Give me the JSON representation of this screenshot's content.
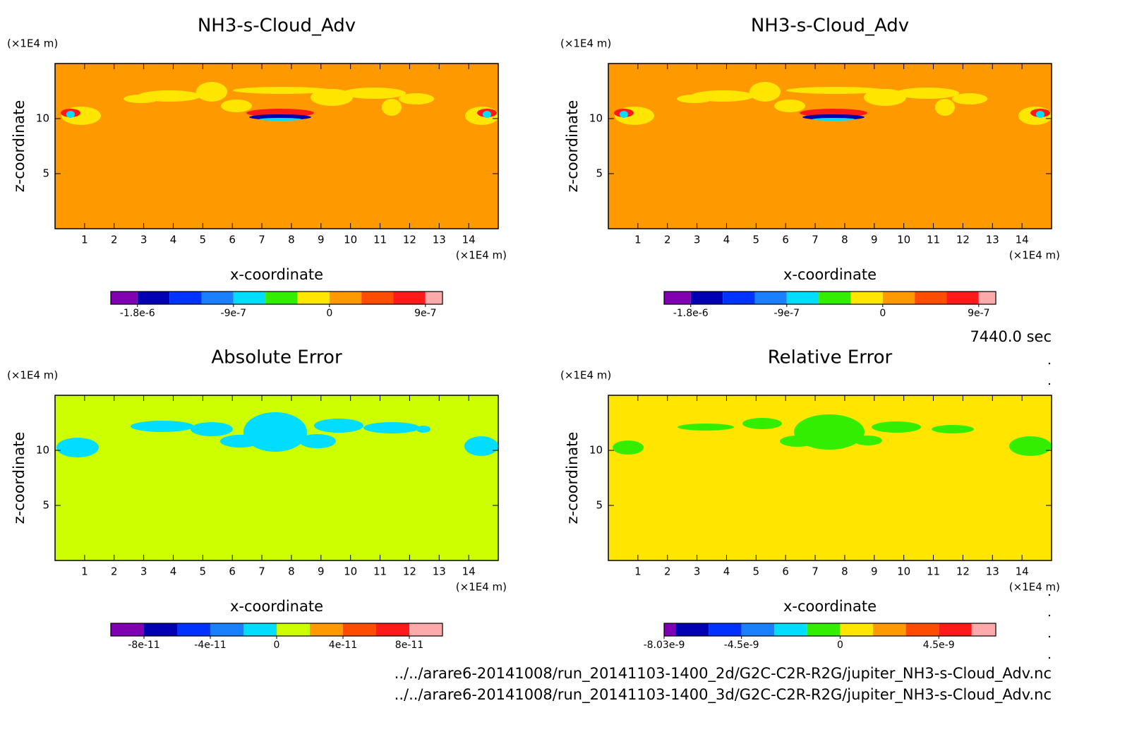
{
  "chart_data": [
    {
      "type": "contour",
      "title": "NH3-s-Cloud_Adv",
      "xlabel": "x-coordinate",
      "ylabel": "z-coordinate",
      "xunit": "(×1E4 m)",
      "yunit": "(×1E4 m)",
      "xlim": [
        0,
        15
      ],
      "ylim": [
        0,
        15
      ],
      "xticks": [
        1,
        2,
        3,
        4,
        5,
        6,
        7,
        8,
        9,
        10,
        11,
        12,
        13,
        14
      ],
      "yticks": [
        5,
        10
      ],
      "field_color": "#ff9900",
      "colorbar": {
        "lim": [
          -2.05e-06,
          1.06e-06
        ],
        "levels": [
          -1.8e-06,
          -1.5e-06,
          -1.2e-06,
          -9e-07,
          -6e-07,
          -3e-07,
          0,
          3e-07,
          6e-07,
          9e-07
        ],
        "colors": [
          "#7f00b2",
          "#0000b2",
          "#0033ff",
          "#1a80ff",
          "#00ddff",
          "#33ee00",
          "#ffe600",
          "#ff9900",
          "#ff4d00",
          "#ff1a1a",
          "#ffaaaa"
        ],
        "ticks": [
          {
            "value": -1.8e-06,
            "label": "-1.8e-6"
          },
          {
            "value": -9e-07,
            "label": "-9e-7"
          },
          0,
          {
            "value": 9e-07,
            "label": "9e-7"
          }
        ]
      }
    },
    {
      "type": "contour",
      "title": "NH3-s-Cloud_Adv",
      "xlabel": "x-coordinate",
      "ylabel": "z-coordinate",
      "xunit": "(×1E4 m)",
      "yunit": "(×1E4 m)",
      "xlim": [
        0,
        15
      ],
      "ylim": [
        0,
        15
      ],
      "xticks": [
        1,
        2,
        3,
        4,
        5,
        6,
        7,
        8,
        9,
        10,
        11,
        12,
        13,
        14
      ],
      "yticks": [
        5,
        10
      ],
      "field_color": "#ff9900",
      "colorbar": {
        "lim": [
          -2.05e-06,
          1.06e-06
        ],
        "levels": [
          -1.8e-06,
          -1.5e-06,
          -1.2e-06,
          -9e-07,
          -6e-07,
          -3e-07,
          0,
          3e-07,
          6e-07,
          9e-07
        ],
        "colors": [
          "#7f00b2",
          "#0000b2",
          "#0033ff",
          "#1a80ff",
          "#00ddff",
          "#33ee00",
          "#ffe600",
          "#ff9900",
          "#ff4d00",
          "#ff1a1a",
          "#ffaaaa"
        ],
        "ticks": [
          {
            "value": -1.8e-06,
            "label": "-1.8e-6"
          },
          {
            "value": -9e-07,
            "label": "-9e-7"
          },
          0,
          {
            "value": 9e-07,
            "label": "9e-7"
          }
        ]
      }
    },
    {
      "type": "contour",
      "title": "Absolute Error",
      "xlabel": "x-coordinate",
      "ylabel": "z-coordinate",
      "xunit": "(×1E4 m)",
      "yunit": "(×1E4 m)",
      "xlim": [
        0,
        15
      ],
      "ylim": [
        0,
        15
      ],
      "xticks": [
        1,
        2,
        3,
        4,
        5,
        6,
        7,
        8,
        9,
        10,
        11,
        12,
        13,
        14
      ],
      "yticks": [
        5,
        10
      ],
      "field_color": "#ccff00",
      "colorbar": {
        "lim": [
          -1e-10,
          1e-10
        ],
        "levels": [
          -8e-11,
          -6e-11,
          -4e-11,
          -2e-11,
          0,
          2e-11,
          4e-11,
          6e-11,
          8e-11
        ],
        "colors": [
          "#7f00b2",
          "#0000b2",
          "#0033ff",
          "#1a80ff",
          "#00ddff",
          "#ccff00",
          "#ff9900",
          "#ff4d00",
          "#ff1a1a",
          "#ffaaaa"
        ],
        "ticks": [
          {
            "value": -8e-11,
            "label": "-8e-11"
          },
          {
            "value": -4e-11,
            "label": "-4e-11"
          },
          0,
          {
            "value": 4e-11,
            "label": "4e-11"
          },
          {
            "value": 8e-11,
            "label": "8e-11"
          }
        ]
      }
    },
    {
      "type": "contour",
      "title": "Relative Error",
      "xlabel": "x-coordinate",
      "ylabel": "z-coordinate",
      "xunit": "(×1E4 m)",
      "yunit": "(×1E4 m)",
      "xlim": [
        0,
        15
      ],
      "ylim": [
        0,
        15
      ],
      "xticks": [
        1,
        2,
        3,
        4,
        5,
        6,
        7,
        8,
        9,
        10,
        11,
        12,
        13,
        14
      ],
      "yticks": [
        5,
        10
      ],
      "field_color": "#ffe600",
      "colorbar": {
        "lim": [
          -8.03e-09,
          7.1e-09
        ],
        "levels": [
          -7.5e-09,
          -6e-09,
          -4.5e-09,
          -3e-09,
          -1.5e-09,
          0,
          1.5e-09,
          3e-09,
          4.5e-09,
          6e-09
        ],
        "colors": [
          "#7f00b2",
          "#0000b2",
          "#0033ff",
          "#1a80ff",
          "#00ddff",
          "#33ee00",
          "#ffe600",
          "#ff9900",
          "#ff4d00",
          "#ff1a1a",
          "#ffaaaa"
        ],
        "ticks": [
          {
            "value": -8.03e-09,
            "label": "-8.03e-9"
          },
          {
            "value": -4.5e-09,
            "label": "-4.5e-9"
          },
          0,
          {
            "value": 4.5e-09,
            "label": "4.5e-9"
          }
        ]
      }
    }
  ],
  "time": "7440.0 sec",
  "files": [
    "../../arare6-20141008/run_20141103-1400_2d/G2C-C2R-R2G/jupiter_NH3-s-Cloud_Adv.nc",
    "../../arare6-20141008/run_20141103-1400_3d/G2C-C2R-R2G/jupiter_NH3-s-Cloud_Adv.nc"
  ]
}
